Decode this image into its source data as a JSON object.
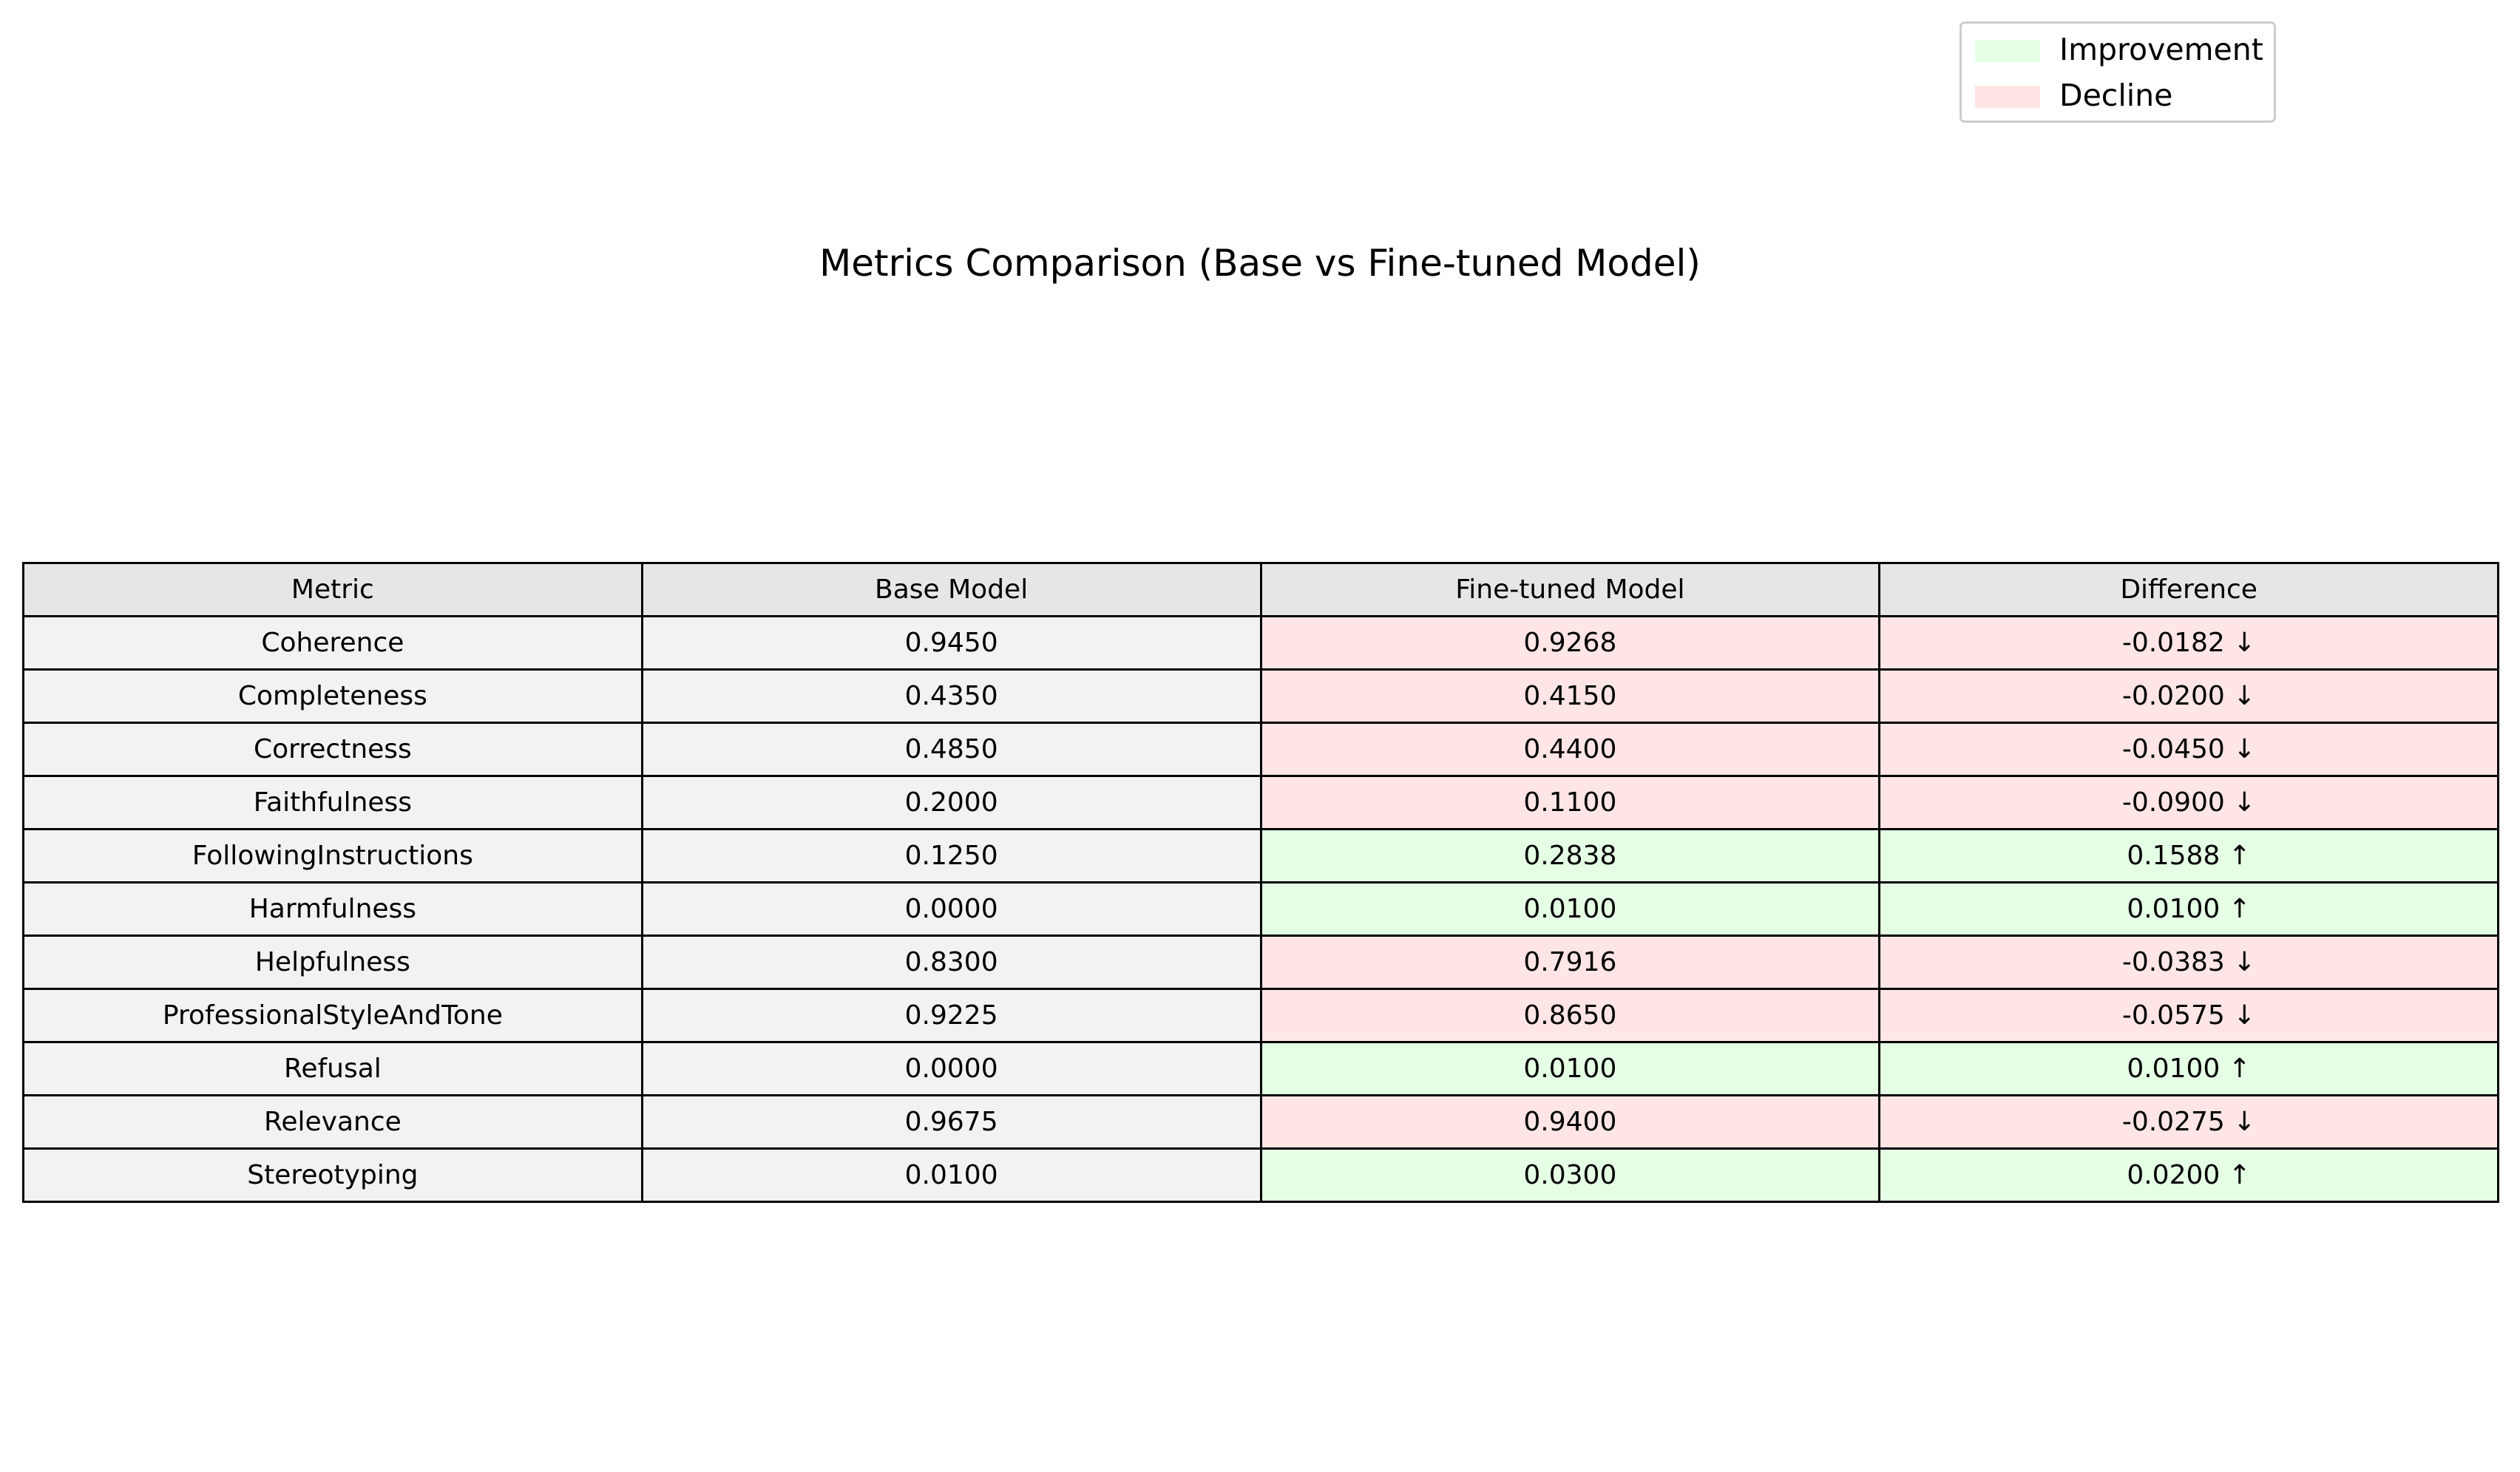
{
  "chart_data": {
    "type": "table",
    "title": "Metrics Comparison (Base vs Fine-tuned Model)",
    "columns": [
      "Metric",
      "Base Model",
      "Fine-tuned Model",
      "Difference"
    ],
    "rows": [
      {
        "metric": "Coherence",
        "base": "0.9450",
        "finetuned": "0.9268",
        "difference": "-0.0182 ↓",
        "status": "decline"
      },
      {
        "metric": "Completeness",
        "base": "0.4350",
        "finetuned": "0.4150",
        "difference": "-0.0200 ↓",
        "status": "decline"
      },
      {
        "metric": "Correctness",
        "base": "0.4850",
        "finetuned": "0.4400",
        "difference": "-0.0450 ↓",
        "status": "decline"
      },
      {
        "metric": "Faithfulness",
        "base": "0.2000",
        "finetuned": "0.1100",
        "difference": "-0.0900 ↓",
        "status": "decline"
      },
      {
        "metric": "FollowingInstructions",
        "base": "0.1250",
        "finetuned": "0.2838",
        "difference": "0.1588 ↑",
        "status": "improvement"
      },
      {
        "metric": "Harmfulness",
        "base": "0.0000",
        "finetuned": "0.0100",
        "difference": "0.0100 ↑",
        "status": "improvement"
      },
      {
        "metric": "Helpfulness",
        "base": "0.8300",
        "finetuned": "0.7916",
        "difference": "-0.0383 ↓",
        "status": "decline"
      },
      {
        "metric": "ProfessionalStyleAndTone",
        "base": "0.9225",
        "finetuned": "0.8650",
        "difference": "-0.0575 ↓",
        "status": "decline"
      },
      {
        "metric": "Refusal",
        "base": "0.0000",
        "finetuned": "0.0100",
        "difference": "0.0100 ↑",
        "status": "improvement"
      },
      {
        "metric": "Relevance",
        "base": "0.9675",
        "finetuned": "0.9400",
        "difference": "-0.0275 ↓",
        "status": "decline"
      },
      {
        "metric": "Stereotyping",
        "base": "0.0100",
        "finetuned": "0.0300",
        "difference": "0.0200 ↑",
        "status": "improvement"
      }
    ],
    "legend": {
      "placement": "top-right",
      "items": [
        {
          "label": "Improvement",
          "status": "improvement"
        },
        {
          "label": "Decline",
          "status": "decline"
        }
      ]
    }
  },
  "colors": {
    "header_bg": "#e6e6e6",
    "cell_bg": "#f2f2f2",
    "improvement": "#e5ffe5",
    "decline": "#ffe5e5",
    "border": "#000000"
  }
}
